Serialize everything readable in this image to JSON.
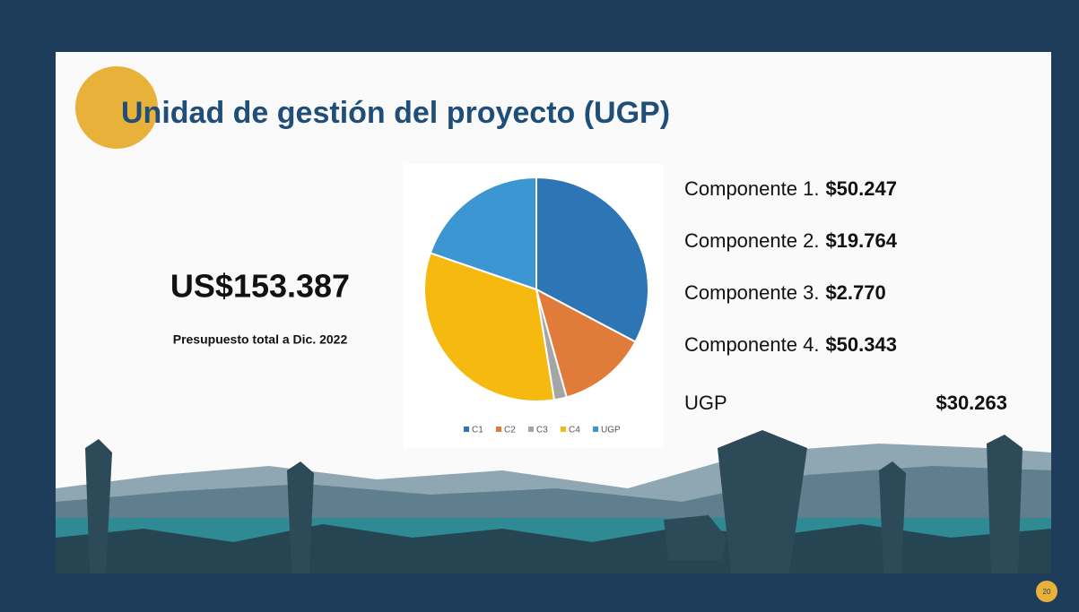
{
  "slide": {
    "title": "Unidad de gestión del proyecto (UGP)",
    "total": "US$153.387",
    "total_caption": "Presupuesto total a Dic. 2022",
    "components": [
      {
        "label": "Componente 1.",
        "amount": "$50.247"
      },
      {
        "label": "Componente 2.",
        "amount": "$19.764"
      },
      {
        "label": "Componente 3.",
        "amount": "$2.770"
      },
      {
        "label": "Componente 4.",
        "amount": "$50.343"
      },
      {
        "label": "UGP",
        "amount": "$30.263"
      }
    ],
    "page_number": "20"
  },
  "chart_data": {
    "type": "pie",
    "categories": [
      "C1",
      "C2",
      "C3",
      "C4",
      "UGP"
    ],
    "values": [
      50247,
      19764,
      2770,
      50343,
      30263
    ],
    "colors": [
      "#2e75b6",
      "#e07b39",
      "#a5a5a5",
      "#f6b90f",
      "#3b96d2"
    ],
    "legend": "bottom"
  }
}
